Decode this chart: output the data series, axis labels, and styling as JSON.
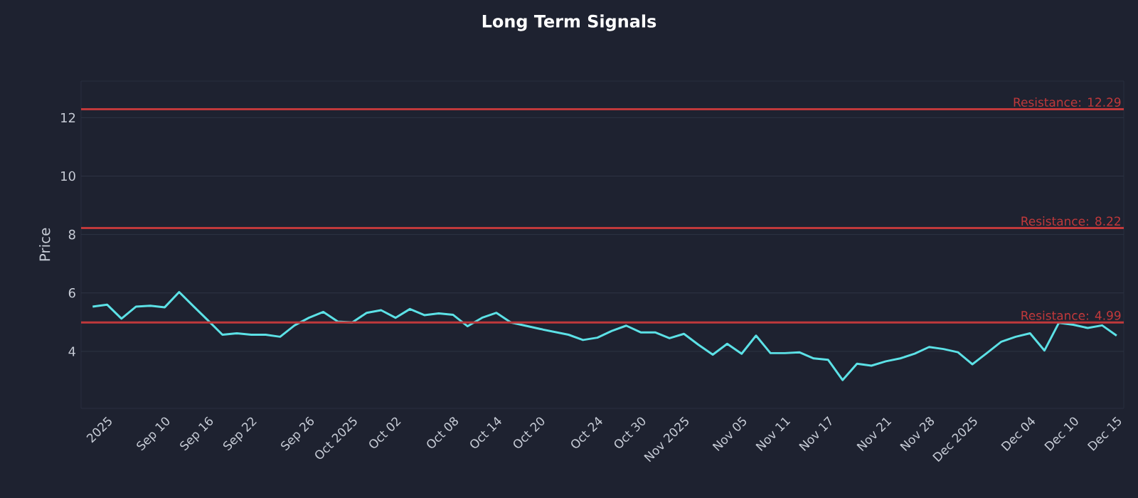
{
  "chart_data": {
    "type": "line",
    "title": "Long Term Signals",
    "ylabel": "Price",
    "categories": [
      null,
      "2025",
      null,
      null,
      null,
      "Sep 10",
      null,
      null,
      "Sep 16",
      null,
      null,
      "Sep 22",
      null,
      null,
      null,
      "Sep 26",
      null,
      null,
      "Oct 2025",
      null,
      null,
      "Oct 02",
      null,
      null,
      null,
      "Oct 08",
      null,
      null,
      "Oct 14",
      null,
      null,
      "Oct 20",
      null,
      null,
      null,
      "Oct 24",
      null,
      null,
      "Oct 30",
      null,
      null,
      "Nov 2025",
      null,
      null,
      null,
      "Nov 05",
      null,
      null,
      "Nov 11",
      null,
      null,
      "Nov 17",
      null,
      null,
      null,
      "Nov 21",
      null,
      null,
      "Nov 28",
      null,
      null,
      "Dec 2025",
      null,
      null,
      null,
      "Dec 04",
      null,
      null,
      "Dec 10",
      null,
      null,
      "Dec 15"
    ],
    "series": [
      {
        "color": "#5ce1e6",
        "values": [
          5.53,
          5.6,
          5.12,
          5.53,
          5.56,
          5.51,
          6.03,
          5.54,
          5.06,
          4.57,
          4.62,
          4.57,
          4.57,
          4.5,
          4.89,
          5.15,
          5.35,
          5.02,
          4.99,
          5.32,
          5.41,
          5.15,
          5.45,
          5.24,
          5.3,
          5.25,
          4.86,
          5.15,
          5.32,
          4.99,
          4.88,
          4.77,
          4.67,
          4.57,
          4.39,
          4.47,
          4.7,
          4.88,
          4.65,
          4.65,
          4.45,
          4.6,
          4.23,
          3.89,
          4.26,
          3.92,
          4.54,
          3.94,
          3.94,
          3.97,
          3.76,
          3.71,
          3.02,
          3.58,
          3.51,
          3.66,
          3.76,
          3.92,
          4.15,
          4.08,
          3.97,
          3.56,
          3.94,
          4.33,
          4.5,
          4.62,
          4.03,
          4.98,
          4.91,
          4.8,
          4.89,
          4.54
        ]
      }
    ],
    "ylim": [
      2.05,
      13.25
    ],
    "yticks": [
      4,
      6,
      8,
      10,
      12
    ],
    "grid": "y",
    "marker": "none",
    "line_style": "solid",
    "ref_lines": [
      {
        "axis": "y",
        "value": 12.29,
        "label": "Resistance: 12.29",
        "color": "#c0393b"
      },
      {
        "axis": "y",
        "value": 8.22,
        "label": "Resistance: 8.22",
        "color": "#c0393b"
      },
      {
        "axis": "y",
        "value": 4.99,
        "label": "Resistance: 4.99",
        "color": "#c0393b"
      }
    ]
  }
}
